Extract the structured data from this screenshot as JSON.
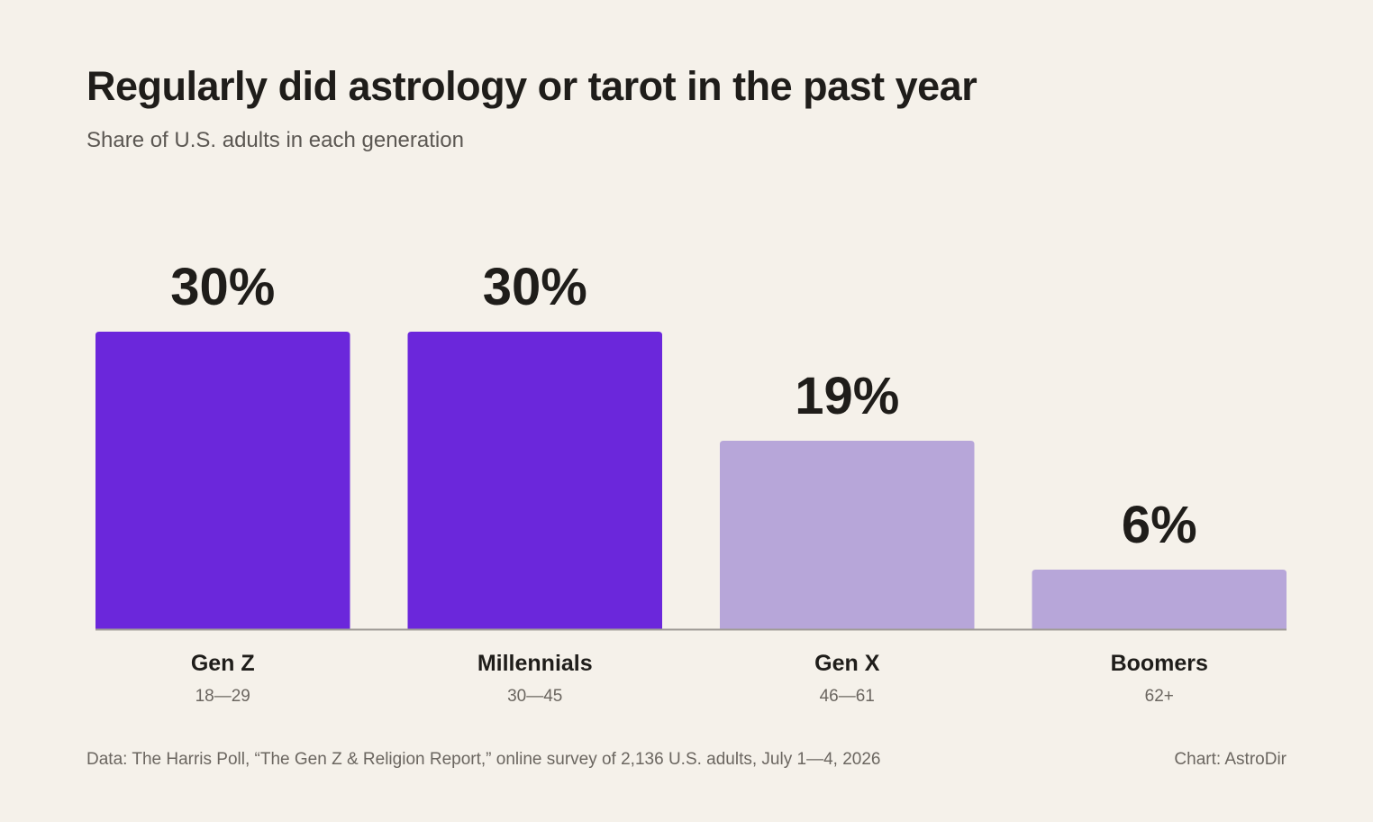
{
  "chart_data": {
    "type": "bar",
    "title": "Regularly did astrology or tarot in the past year",
    "subtitle": "Share of U.S. adults in each generation",
    "categories": [
      "Gen Z",
      "Millennials",
      "Gen X",
      "Boomers"
    ],
    "category_sublabels": [
      "18—29",
      "30—45",
      "46—61",
      "62+"
    ],
    "values": [
      30,
      30,
      19,
      6
    ],
    "value_labels": [
      "30%",
      "30%",
      "19%",
      "6%"
    ],
    "bar_colors": [
      "#6b27db",
      "#6b27db",
      "#b7a6d9",
      "#b7a6d9"
    ],
    "ylim": [
      0,
      30
    ],
    "grid": false,
    "xlabel": "",
    "ylabel": ""
  },
  "footer": {
    "source": "Data: The Harris Poll, “The Gen Z & Religion Report,” online survey of 2,136 U.S. adults, July 1—4, 2026",
    "credit": "Chart: AstroDir"
  },
  "colors": {
    "background": "#f5f1ea",
    "text": "#1f1d1a",
    "muted_text": "#6b6660",
    "baseline": "#a09c97"
  }
}
